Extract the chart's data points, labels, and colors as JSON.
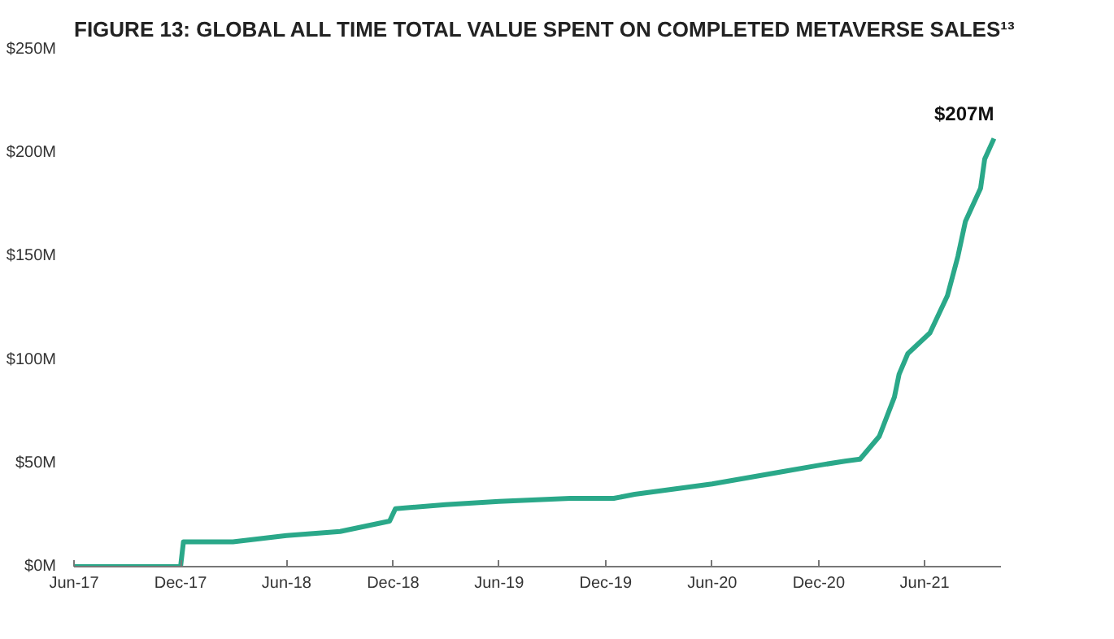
{
  "chart_data": {
    "type": "line",
    "title": "FIGURE 13: GLOBAL ALL TIME TOTAL VALUE SPENT ON COMPLETED METAVERSE SALES¹³",
    "x": [
      "2017-06-01",
      "2017-12-01",
      "2017-12-06",
      "2018-03-01",
      "2018-06-01",
      "2018-09-01",
      "2018-11-25",
      "2018-12-05",
      "2019-03-01",
      "2019-06-01",
      "2019-10-01",
      "2019-12-15",
      "2020-01-20",
      "2020-06-01",
      "2020-10-01",
      "2020-12-01",
      "2021-01-15",
      "2021-02-10",
      "2021-03-15",
      "2021-04-10",
      "2021-04-18",
      "2021-05-03",
      "2021-06-10",
      "2021-07-10",
      "2021-07-28",
      "2021-08-10",
      "2021-09-05",
      "2021-09-12",
      "2021-09-28"
    ],
    "series": [
      {
        "color": "#2aa889",
        "values": [
          0,
          0,
          12,
          12,
          15,
          17,
          22,
          28,
          30,
          31.5,
          33,
          33,
          35,
          40,
          46,
          49,
          51,
          52,
          63,
          82,
          93,
          103,
          113,
          131,
          150,
          167,
          183,
          197,
          207
        ]
      }
    ],
    "annotations": [
      {
        "text": "$207M",
        "x": "2021-09-28",
        "y": 207
      }
    ],
    "xlim": [
      "2017-06-01",
      "2021-10-10"
    ],
    "xticks": [
      {
        "value": "2017-06-01",
        "label": "Jun-17"
      },
      {
        "value": "2017-12-01",
        "label": "Dec-17"
      },
      {
        "value": "2018-06-01",
        "label": "Jun-18"
      },
      {
        "value": "2018-12-01",
        "label": "Dec-18"
      },
      {
        "value": "2019-06-01",
        "label": "Jun-19"
      },
      {
        "value": "2019-12-01",
        "label": "Dec-19"
      },
      {
        "value": "2020-06-01",
        "label": "Jun-20"
      },
      {
        "value": "2020-12-01",
        "label": "Dec-20"
      },
      {
        "value": "2021-06-01",
        "label": "Jun-21"
      }
    ],
    "ylim": [
      0,
      250
    ],
    "yticks": [
      {
        "value": 0,
        "label": "$0M"
      },
      {
        "value": 50,
        "label": "$50M"
      },
      {
        "value": 100,
        "label": "$100M"
      },
      {
        "value": 150,
        "label": "$150M"
      },
      {
        "value": 200,
        "label": "$200M"
      },
      {
        "value": 250,
        "label": "$250M"
      }
    ],
    "grid": false,
    "marker": "none",
    "line_style": "solid"
  }
}
